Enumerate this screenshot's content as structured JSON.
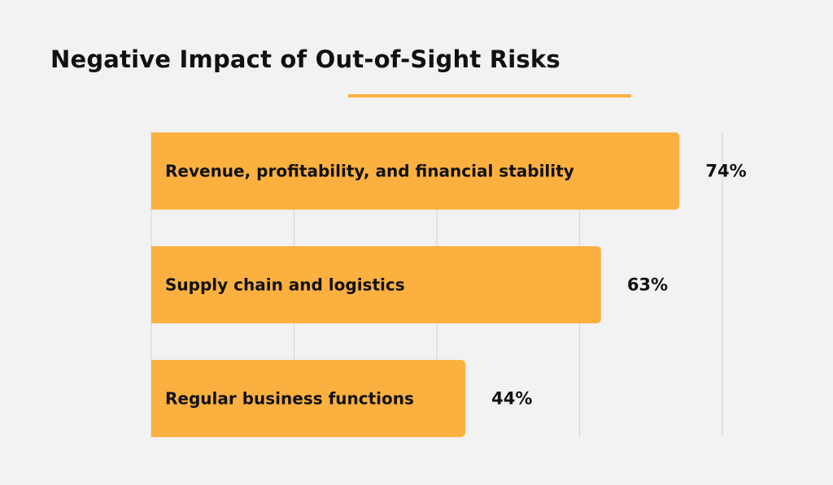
{
  "title": {
    "prefix": "Negative Impact of ",
    "highlight": "Out-of-Sight Risks"
  },
  "colors": {
    "background": "#f2f2f2",
    "bar": "#fbb040",
    "accent": "#fbb040",
    "grid": "#d4d4d4",
    "text": "#111111"
  },
  "chart_data": {
    "type": "bar",
    "orientation": "horizontal",
    "title": "Negative Impact of Out-of-Sight Risks",
    "categories": [
      "Revenue, profitability, and financial stability",
      "Supply chain and logistics",
      "Regular business functions"
    ],
    "values": [
      74,
      63,
      44
    ],
    "value_labels": [
      "74%",
      "63%",
      "44%"
    ],
    "unit": "%",
    "xlim": [
      0,
      80
    ],
    "grid": true,
    "legend": "none"
  }
}
